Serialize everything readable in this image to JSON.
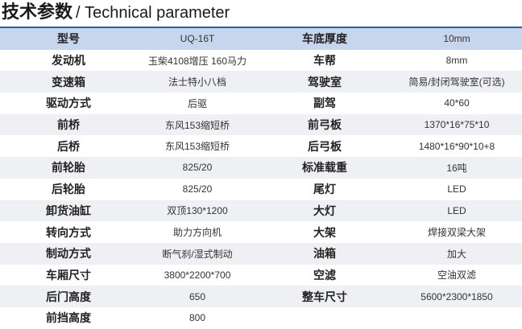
{
  "header": {
    "title_cn": "技术参数",
    "title_en": "/ Technical parameter"
  },
  "table": {
    "rows": [
      [
        "型号",
        "UQ-16T",
        "车底厚度",
        "10mm"
      ],
      [
        "发动机",
        "玉柴4108增压 160马力",
        "车帮",
        "8mm"
      ],
      [
        "变速箱",
        "法士特小八档",
        "驾驶室",
        "简易/封闭驾驶室(可选)"
      ],
      [
        "驱动方式",
        "后驱",
        "副驾",
        "40*60"
      ],
      [
        "前桥",
        "东风153缩短桥",
        "前弓板",
        "1370*16*75*10"
      ],
      [
        "后桥",
        "东风153缩短桥",
        "后弓板",
        "1480*16*90*10+8"
      ],
      [
        "前轮胎",
        "825/20",
        "标准载重",
        "16吨"
      ],
      [
        "后轮胎",
        "825/20",
        "尾灯",
        "LED"
      ],
      [
        "卸货油缸",
        "双顶130*1200",
        "大灯",
        "LED"
      ],
      [
        "转向方式",
        "助力方向机",
        "大架",
        "焊接双梁大架"
      ],
      [
        "制动方式",
        "断气刹/湿式制动",
        "油箱",
        "加大"
      ],
      [
        "车厢尺寸",
        "3800*2200*700",
        "空滤",
        "空油双滤"
      ],
      [
        "后门高度",
        "650",
        "整车尺寸",
        "5600*2300*1850"
      ],
      [
        "前挡高度",
        "800"
      ]
    ]
  }
}
